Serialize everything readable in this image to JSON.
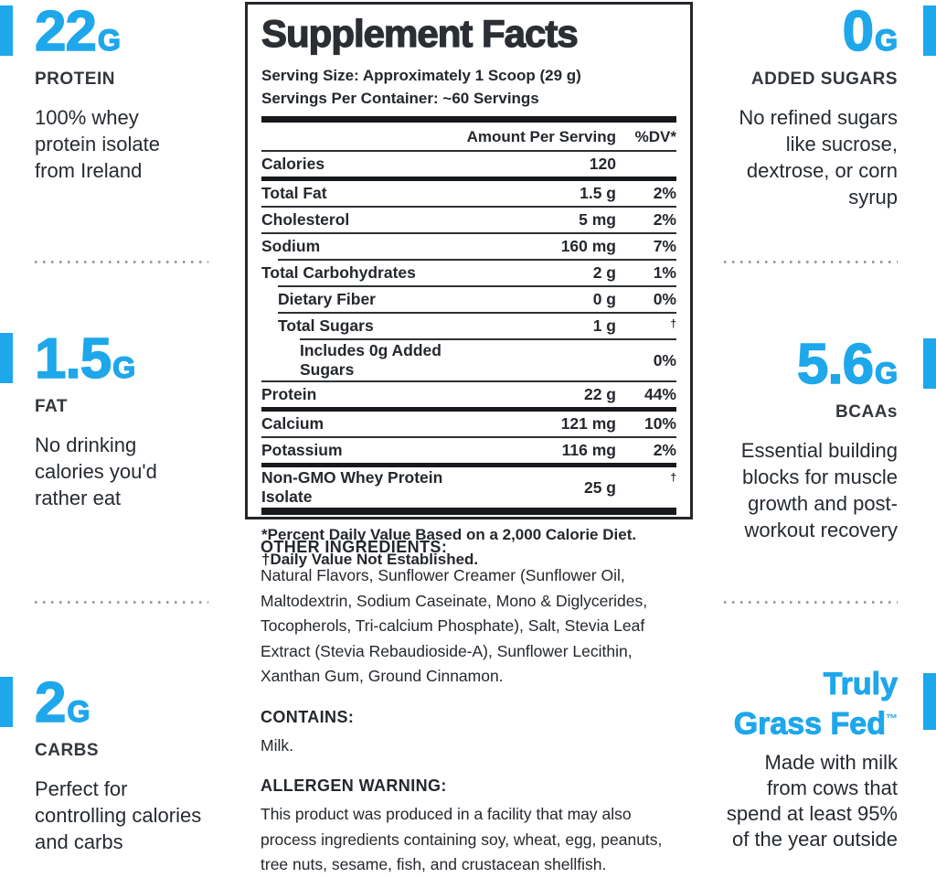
{
  "colors": {
    "accent": "#1EA7EB",
    "dark": "#24282d"
  },
  "stats_left": [
    {
      "value": "22",
      "unit": "G",
      "label": "PROTEIN",
      "description": "100% whey\nprotein isolate\nfrom Ireland"
    },
    {
      "value": "1.5",
      "unit": "G",
      "label": "FAT",
      "description": "No drinking\ncalories you'd\nrather eat"
    },
    {
      "value": "2",
      "unit": "G",
      "label": "CARBS",
      "description": "Perfect for\ncontrolling calories\nand carbs"
    }
  ],
  "stats_right": [
    {
      "value": "0",
      "unit": "G",
      "label": "ADDED SUGARS",
      "description": "No refined sugars\nlike sucrose,\ndextrose, or corn\nsyrup"
    },
    {
      "value": "5.6",
      "unit": "G",
      "label": "BCAAs",
      "description": "Essential building\nblocks for muscle\ngrowth and post-\nworkout recovery"
    },
    {
      "title_line1": "Truly",
      "title_line2": "Grass Fed",
      "trademark": "™",
      "description": "Made with milk\nfrom cows that\nspend at least 95%\nof the year outside"
    }
  ],
  "panel": {
    "title": "Supplement Facts",
    "serving_size": "Serving Size: Approximately 1 Scoop (29 g)",
    "servings_per_container": "Servings Per Container: ~60 Servings",
    "columns": {
      "amount": "Amount Per Serving",
      "dv": "%DV*"
    },
    "rows": [
      {
        "name": "Calories",
        "amount": "120",
        "dv": "",
        "indent": 0,
        "after": "thick"
      },
      {
        "name": "Total Fat",
        "amount": "1.5 g",
        "dv": "2%",
        "indent": 0,
        "after": "thin"
      },
      {
        "name": "Cholesterol",
        "amount": "5 mg",
        "dv": "2%",
        "indent": 0,
        "after": "thin"
      },
      {
        "name": "Sodium",
        "amount": "160 mg",
        "dv": "7%",
        "indent": 0,
        "after": "thin1"
      },
      {
        "name": "Total Carbohydrates",
        "amount": "2 g",
        "dv": "1%",
        "indent": 0,
        "after": "thin1"
      },
      {
        "name": "Dietary Fiber",
        "amount": "0 g",
        "dv": "0%",
        "indent": 1,
        "after": "thin1"
      },
      {
        "name": "Total Sugars",
        "amount": "1 g",
        "dv": "†",
        "indent": 1,
        "after": "thin2"
      },
      {
        "name": "Includes 0g Added Sugars",
        "amount": "",
        "dv": "0%",
        "indent": 2,
        "after": "thin"
      },
      {
        "name": "Protein",
        "amount": "22 g",
        "dv": "44%",
        "indent": 0,
        "after": "thick"
      },
      {
        "name": "Calcium",
        "amount": "121 mg",
        "dv": "10%",
        "indent": 0,
        "after": "thin"
      },
      {
        "name": "Potassium",
        "amount": "116 mg",
        "dv": "2%",
        "indent": 0,
        "after": "thick"
      },
      {
        "name": "Non-GMO Whey Protein Isolate",
        "amount": "25 g",
        "dv": "†",
        "indent": 0,
        "after": "bar"
      }
    ],
    "footnotes": [
      "*Percent Daily Value Based on a 2,000 Calorie Diet.",
      "†Daily Value Not Established."
    ]
  },
  "info_sections": [
    {
      "heading": "OTHER INGREDIENTS:",
      "body": "Natural Flavors, Sunflower Creamer (Sunflower Oil,\nMaltodextrin, Sodium Caseinate, Mono & Diglycerides,\nTocopherols, Tri-calcium Phosphate), Salt, Stevia Leaf\nExtract (Stevia Rebaudioside-A), Sunflower Lecithin,\nXanthan Gum, Ground Cinnamon."
    },
    {
      "heading": "CONTAINS:",
      "body": "Milk."
    },
    {
      "heading": "ALLERGEN WARNING:",
      "body": "This product was produced in a facility that may also\nprocess ingredients containing soy, wheat, egg, peanuts,\ntree nuts, sesame, fish, and crustacean shellfish."
    }
  ]
}
